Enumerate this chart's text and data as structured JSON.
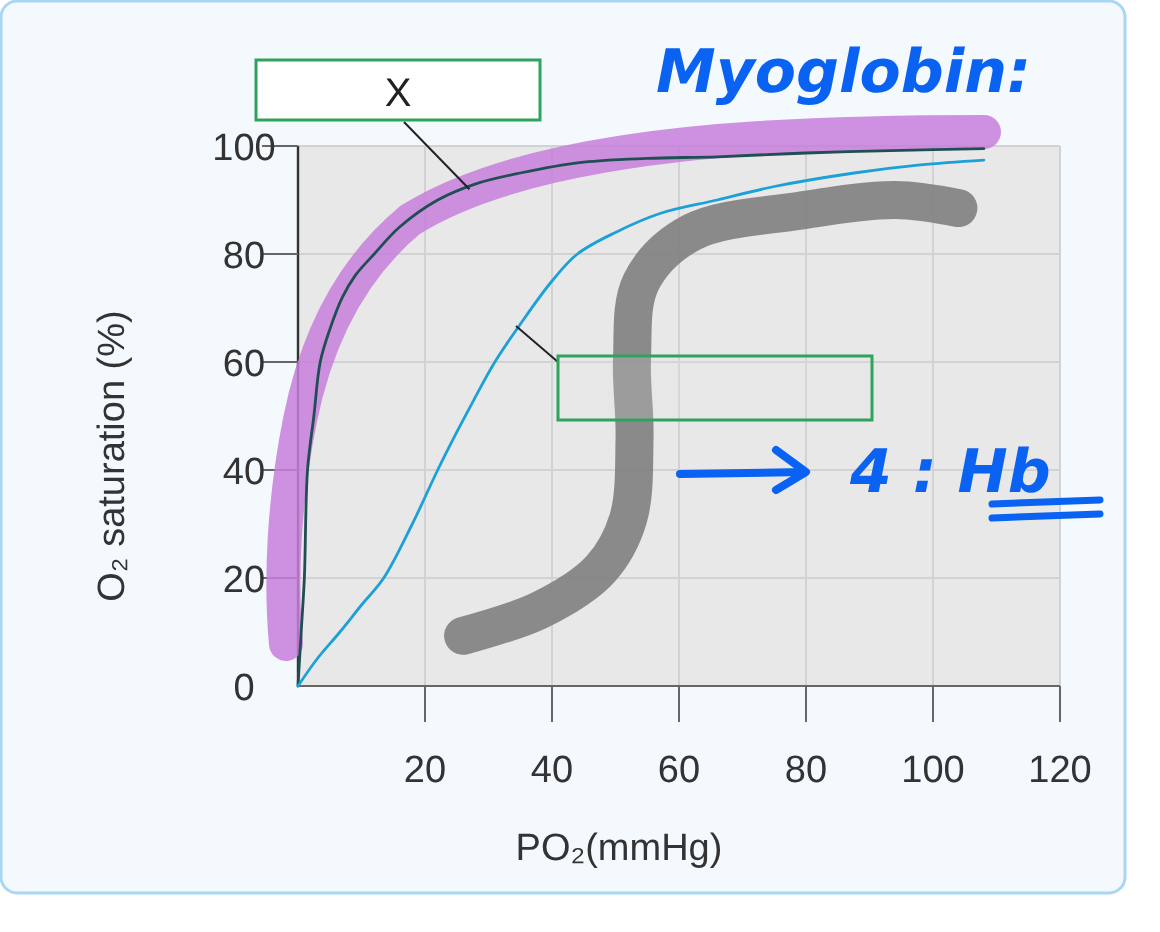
{
  "chart_data": {
    "type": "line",
    "xlabel": "PO₂(mmHg)",
    "ylabel": "O₂ saturation (%)",
    "xlim": [
      0,
      120
    ],
    "xticks": [
      20,
      40,
      60,
      80,
      100,
      120
    ],
    "ylim": [
      0,
      100
    ],
    "yticks": [
      0,
      20,
      40,
      60,
      80,
      100
    ],
    "grid": true,
    "series": [
      {
        "color": "#1f4f52",
        "x": [
          0,
          0.5,
          1,
          1.5,
          2.5,
          3.5,
          5,
          7,
          9,
          12,
          16,
          22,
          28,
          35,
          45,
          55,
          66,
          80,
          95,
          108
        ],
        "values": [
          0,
          10,
          20,
          40,
          50,
          60,
          66,
          72,
          76,
          80,
          85,
          90,
          93,
          95,
          97,
          97.7,
          98,
          98.7,
          99.2,
          99.5
        ]
      },
      {
        "color": "#1ca0d8",
        "x": [
          0,
          3,
          6.6,
          10,
          13.5,
          18,
          22,
          25,
          27.7,
          31,
          35,
          40,
          44,
          50,
          57,
          66,
          75,
          87.6,
          98,
          108
        ],
        "values": [
          0,
          5,
          10,
          15,
          20,
          30,
          40,
          47,
          53,
          60,
          67,
          75,
          80,
          84,
          87.5,
          90,
          92.5,
          95,
          96.5,
          97.4
        ]
      },
      {
        "color": "#808080",
        "x": [
          26,
          38,
          47.6,
          52,
          53,
          52.6,
          54,
          62,
          79,
          94,
          104
        ],
        "values": [
          9.3,
          14,
          21.6,
          31,
          46,
          60.6,
          74.7,
          84,
          88,
          90,
          88.5
        ]
      }
    ],
    "annotations": [
      {
        "text": "X",
        "x": 27,
        "y": 92
      },
      "Myoglobin:",
      "4 : Hb"
    ]
  }
}
